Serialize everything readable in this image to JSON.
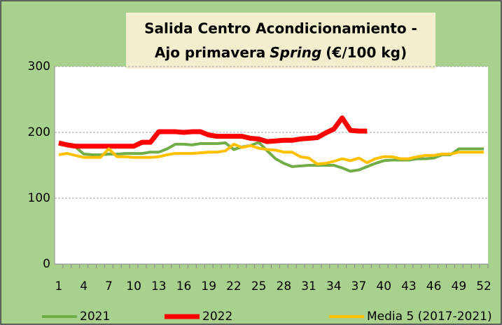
{
  "chart_data": {
    "type": "line",
    "title": [
      "Salida Centro Acondicionamiento -",
      "Ajo primavera",
      "Spring",
      "(€/100 kg)"
    ],
    "x": [
      1,
      2,
      3,
      4,
      5,
      6,
      7,
      8,
      9,
      10,
      11,
      12,
      13,
      14,
      15,
      16,
      17,
      18,
      19,
      20,
      21,
      22,
      23,
      24,
      25,
      26,
      27,
      28,
      29,
      30,
      31,
      32,
      33,
      34,
      35,
      36,
      37,
      38,
      39,
      40,
      41,
      42,
      43,
      44,
      45,
      46,
      47,
      48,
      49,
      50,
      51,
      52
    ],
    "xlim": [
      0.5,
      52.5
    ],
    "xticks": [
      1,
      4,
      7,
      10,
      13,
      16,
      19,
      22,
      25,
      28,
      31,
      34,
      37,
      40,
      43,
      46,
      49,
      52
    ],
    "ylim": [
      0,
      300
    ],
    "yticks": [
      0,
      100,
      200,
      300
    ],
    "grid": true,
    "series": [
      {
        "name": "2021",
        "color": "#70ad47",
        "width": 4,
        "values": [
          182,
          180,
          178,
          167,
          166,
          166,
          167,
          167,
          168,
          168,
          168,
          170,
          170,
          175,
          182,
          182,
          181,
          183,
          183,
          183,
          184,
          174,
          178,
          180,
          185,
          172,
          160,
          153,
          148,
          149,
          150,
          150,
          150,
          150,
          146,
          141,
          143,
          148,
          153,
          157,
          158,
          158,
          158,
          160,
          160,
          161,
          166,
          166,
          175,
          175,
          175,
          175
        ]
      },
      {
        "name": "2022",
        "color": "#ff0000",
        "width": 7,
        "values": [
          184,
          181,
          179,
          179,
          179,
          179,
          179,
          179,
          179,
          179,
          185,
          185,
          201,
          201,
          201,
          200,
          201,
          201,
          196,
          194,
          194,
          194,
          194,
          191,
          190,
          186,
          187,
          188,
          188,
          190,
          191,
          192,
          199,
          205,
          222,
          203,
          202,
          202,
          null,
          null,
          null,
          null,
          null,
          null,
          null,
          null,
          null,
          null,
          null,
          null,
          null,
          null
        ]
      },
      {
        "name": "Media 5 (2017-2021)",
        "color": "#ffc000",
        "width": 4,
        "values": [
          166,
          168,
          165,
          162,
          162,
          162,
          175,
          163,
          163,
          162,
          162,
          162,
          163,
          166,
          168,
          168,
          168,
          169,
          170,
          170,
          172,
          182,
          177,
          180,
          176,
          174,
          173,
          170,
          170,
          163,
          161,
          152,
          153,
          156,
          160,
          157,
          161,
          154,
          160,
          163,
          163,
          160,
          160,
          163,
          165,
          165,
          167,
          167,
          170,
          170,
          170,
          170
        ]
      }
    ]
  }
}
